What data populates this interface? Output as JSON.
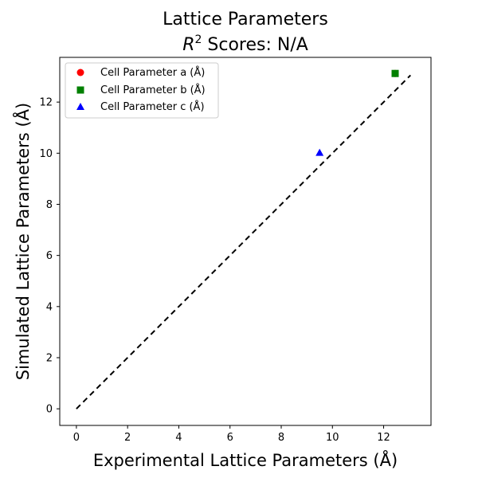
{
  "chart_data": {
    "type": "scatter",
    "title_line1": "Lattice Parameters",
    "title_line2_prefix": "R",
    "title_line2_sup": "2",
    "title_line2_suffix": " Scores: N/A",
    "xlabel": "Experimental Lattice Parameters (Å)",
    "ylabel": "Simulated Lattice Parameters (Å)",
    "xlim": [
      -0.65,
      13.85
    ],
    "ylim": [
      -0.65,
      13.75
    ],
    "xticks": [
      0,
      2,
      4,
      6,
      8,
      10,
      12
    ],
    "yticks": [
      0,
      2,
      4,
      6,
      8,
      10,
      12
    ],
    "reference_line": {
      "x": [
        0,
        13.05
      ],
      "y": [
        0,
        13.05
      ],
      "color": "#000000",
      "style": "dashed"
    },
    "legend_position": "upper-left",
    "series": [
      {
        "name": "Cell Parameter a (Å)",
        "marker": "circle",
        "color": "#ff0000",
        "points": [
          [
            12.45,
            13.12
          ]
        ]
      },
      {
        "name": "Cell Parameter b (Å)",
        "marker": "square",
        "color": "#008000",
        "points": [
          [
            12.45,
            13.12
          ]
        ]
      },
      {
        "name": "Cell Parameter c (Å)",
        "marker": "triangle",
        "color": "#0000ff",
        "points": [
          [
            9.5,
            10.02
          ]
        ]
      }
    ]
  }
}
